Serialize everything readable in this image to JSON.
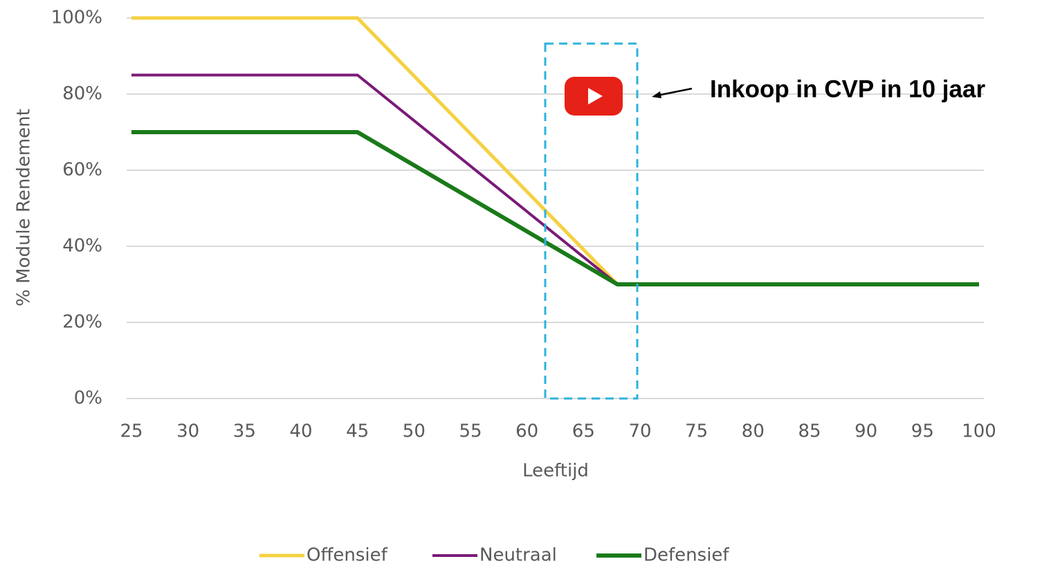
{
  "chart_data": {
    "type": "line",
    "x": [
      25,
      45,
      68,
      100
    ],
    "series": [
      {
        "name": "Offensief",
        "color": "#f5d142",
        "values": [
          100,
          100,
          30,
          30
        ]
      },
      {
        "name": "Neutraal",
        "color": "#7a1a78",
        "values": [
          85,
          85,
          30,
          30
        ]
      },
      {
        "name": "Defensief",
        "color": "#1a7a1a",
        "values": [
          70,
          70,
          30,
          30
        ]
      }
    ],
    "xlabel": "Leeftijd",
    "ylabel": "% Module Rendement",
    "xlim": [
      25,
      100
    ],
    "xticks": [
      25,
      30,
      35,
      40,
      45,
      50,
      55,
      60,
      65,
      70,
      75,
      80,
      85,
      90,
      95,
      100
    ],
    "ylim": [
      0,
      100
    ],
    "yticks": [
      {
        "value": 0,
        "label": "0%"
      },
      {
        "value": 20,
        "label": "20%"
      },
      {
        "value": 40,
        "label": "40%"
      },
      {
        "value": 60,
        "label": "60%"
      },
      {
        "value": 80,
        "label": "80%"
      },
      {
        "value": 100,
        "label": "100%"
      }
    ],
    "grid": true,
    "legend": "bottom",
    "annotation": "Inkoop in CVP in 10 jaar"
  }
}
